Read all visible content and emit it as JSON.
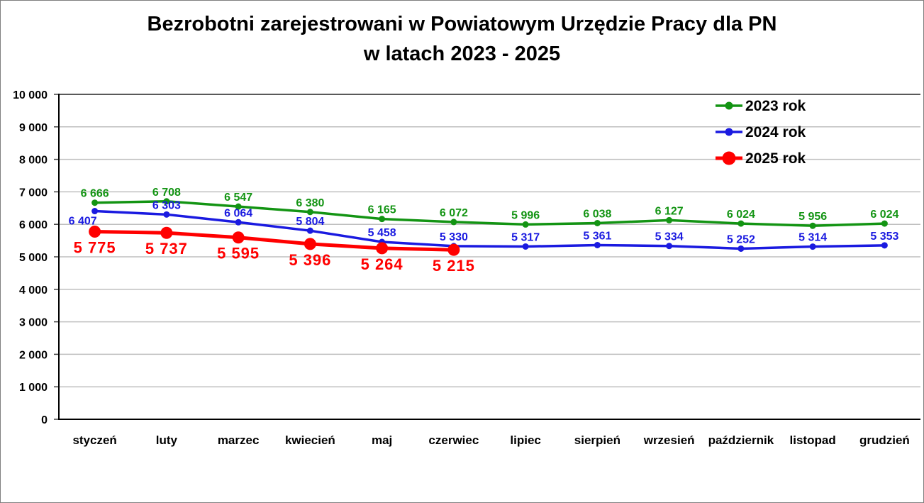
{
  "window": {
    "title_lines": [
      "Bezrobotni zarejestrowani w Powiatowym Urzędzie Pracy dla PN",
      "w latach 2023 - 2025"
    ]
  },
  "colors": {
    "background": "#ffffff",
    "frame_border": "#7f7f7f",
    "grid": "#bfbfbf",
    "plot_top_border": "#595959",
    "axis": "#000000",
    "text": "#000000"
  },
  "chart_data": {
    "type": "line",
    "title": "Bezrobotni zarejestrowani w Powiatowym Urzędzie Pracy dla PN w latach 2023 - 2025",
    "categories": [
      "styczeń",
      "luty",
      "marzec",
      "kwiecień",
      "maj",
      "czerwiec",
      "lipiec",
      "sierpień",
      "wrzesień",
      "październik",
      "listopad",
      "grudzień"
    ],
    "series": [
      {
        "name": "2023 rok",
        "color": "#139413",
        "values": [
          6666,
          6708,
          6547,
          6380,
          6165,
          6072,
          5996,
          6038,
          6127,
          6024,
          5956,
          6024
        ],
        "label_position": "above",
        "marker_radius": 4.5,
        "line_width": 3.5
      },
      {
        "name": "2024 rok",
        "color": "#1a1ae0",
        "values": [
          6407,
          6303,
          6064,
          5804,
          5458,
          5330,
          5317,
          5361,
          5334,
          5252,
          5314,
          5353
        ],
        "label_position": "above",
        "first_label_below": true,
        "marker_radius": 4.5,
        "line_width": 3.5
      },
      {
        "name": "2025 rok",
        "color": "#ff0000",
        "values": [
          5775,
          5737,
          5595,
          5396,
          5264,
          5215
        ],
        "label_position": "below",
        "marker_radius": 8.5,
        "line_width": 5
      }
    ],
    "ylim": [
      0,
      10000
    ],
    "ytick_step": 1000,
    "ytick_labels": [
      "0",
      "1 000",
      "2 000",
      "3 000",
      "4 000",
      "5 000",
      "6 000",
      "7 000",
      "8 000",
      "9 000",
      "10 000"
    ],
    "grid": true,
    "legend_position": "top-right",
    "legend_labels": [
      "2023 rok",
      "2024 rok",
      "2025 rok"
    ]
  }
}
